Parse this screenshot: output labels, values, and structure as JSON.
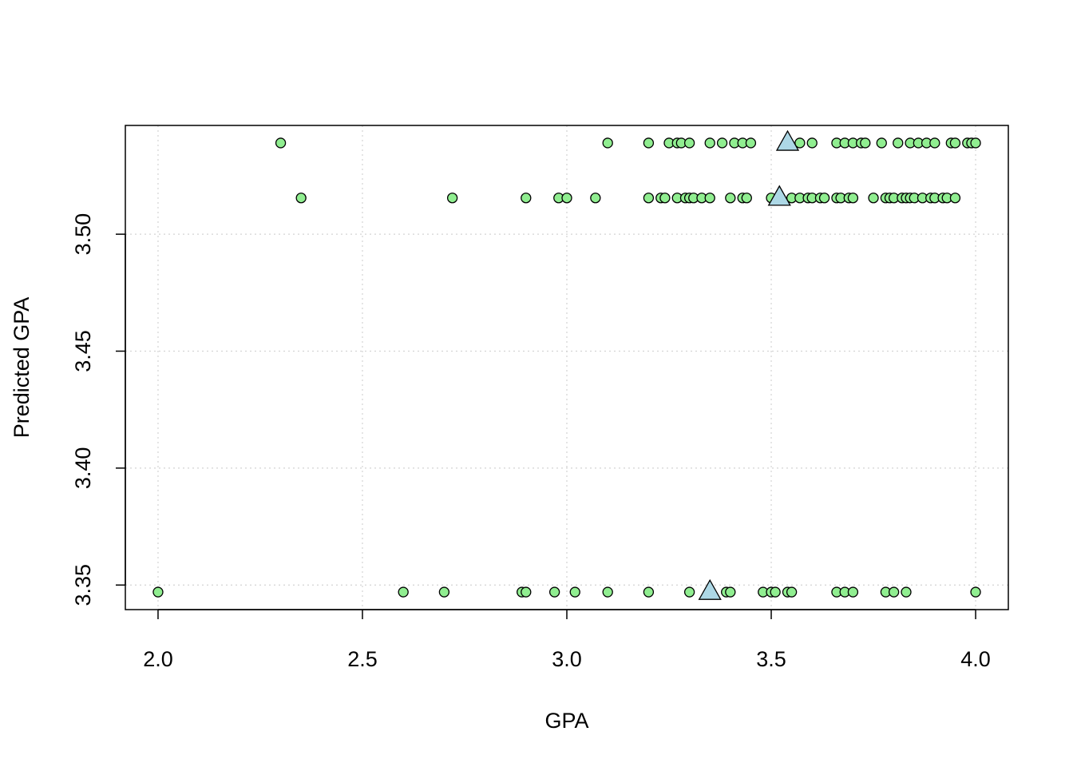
{
  "chart_data": {
    "type": "scatter",
    "title": "",
    "xlabel": "GPA",
    "ylabel": "Predicted GPA",
    "xlim": [
      1.92,
      4.08
    ],
    "ylim": [
      3.3395,
      3.5465
    ],
    "x_ticks": [
      2.0,
      2.5,
      3.0,
      3.5,
      4.0
    ],
    "x_tick_labels": [
      "2.0",
      "2.5",
      "3.0",
      "3.5",
      "4.0"
    ],
    "y_ticks": [
      3.35,
      3.4,
      3.45,
      3.5
    ],
    "y_tick_labels": [
      "3.35",
      "3.40",
      "3.45",
      "3.50"
    ],
    "grid": true,
    "colors": {
      "points_fill": "#90ee90",
      "triangles_fill": "#add8e6",
      "marker_edge": "#000000",
      "grid": "#d3d3d3"
    },
    "series": [
      {
        "marker": "circle",
        "points": [
          [
            2.3,
            3.539
          ],
          [
            3.1,
            3.539
          ],
          [
            3.2,
            3.539
          ],
          [
            3.25,
            3.539
          ],
          [
            3.27,
            3.539
          ],
          [
            3.28,
            3.539
          ],
          [
            3.3,
            3.539
          ],
          [
            3.35,
            3.539
          ],
          [
            3.38,
            3.539
          ],
          [
            3.41,
            3.539
          ],
          [
            3.43,
            3.539
          ],
          [
            3.45,
            3.539
          ],
          [
            3.57,
            3.539
          ],
          [
            3.6,
            3.539
          ],
          [
            3.66,
            3.539
          ],
          [
            3.68,
            3.539
          ],
          [
            3.7,
            3.539
          ],
          [
            3.72,
            3.539
          ],
          [
            3.73,
            3.539
          ],
          [
            3.77,
            3.539
          ],
          [
            3.81,
            3.539
          ],
          [
            3.84,
            3.539
          ],
          [
            3.86,
            3.539
          ],
          [
            3.88,
            3.539
          ],
          [
            3.9,
            3.539
          ],
          [
            3.94,
            3.539
          ],
          [
            3.95,
            3.539
          ],
          [
            3.98,
            3.539
          ],
          [
            3.99,
            3.539
          ],
          [
            4.0,
            3.539
          ],
          [
            2.35,
            3.5155
          ],
          [
            2.72,
            3.5155
          ],
          [
            2.9,
            3.5155
          ],
          [
            2.98,
            3.5155
          ],
          [
            3.0,
            3.5155
          ],
          [
            3.07,
            3.5155
          ],
          [
            3.2,
            3.5155
          ],
          [
            3.23,
            3.5155
          ],
          [
            3.24,
            3.5155
          ],
          [
            3.27,
            3.5155
          ],
          [
            3.29,
            3.5155
          ],
          [
            3.3,
            3.5155
          ],
          [
            3.31,
            3.5155
          ],
          [
            3.33,
            3.5155
          ],
          [
            3.35,
            3.5155
          ],
          [
            3.4,
            3.5155
          ],
          [
            3.43,
            3.5155
          ],
          [
            3.44,
            3.5155
          ],
          [
            3.5,
            3.5155
          ],
          [
            3.52,
            3.5155
          ],
          [
            3.55,
            3.5155
          ],
          [
            3.57,
            3.5155
          ],
          [
            3.59,
            3.5155
          ],
          [
            3.6,
            3.5155
          ],
          [
            3.62,
            3.5155
          ],
          [
            3.63,
            3.5155
          ],
          [
            3.66,
            3.5155
          ],
          [
            3.67,
            3.5155
          ],
          [
            3.69,
            3.5155
          ],
          [
            3.7,
            3.5155
          ],
          [
            3.75,
            3.5155
          ],
          [
            3.78,
            3.5155
          ],
          [
            3.79,
            3.5155
          ],
          [
            3.8,
            3.5155
          ],
          [
            3.82,
            3.5155
          ],
          [
            3.83,
            3.5155
          ],
          [
            3.84,
            3.5155
          ],
          [
            3.85,
            3.5155
          ],
          [
            3.87,
            3.5155
          ],
          [
            3.89,
            3.5155
          ],
          [
            3.9,
            3.5155
          ],
          [
            3.92,
            3.5155
          ],
          [
            3.93,
            3.5155
          ],
          [
            3.95,
            3.5155
          ],
          [
            2.0,
            3.347
          ],
          [
            2.6,
            3.347
          ],
          [
            2.7,
            3.347
          ],
          [
            2.89,
            3.347
          ],
          [
            2.9,
            3.347
          ],
          [
            2.97,
            3.347
          ],
          [
            3.02,
            3.347
          ],
          [
            3.1,
            3.347
          ],
          [
            3.2,
            3.347
          ],
          [
            3.3,
            3.347
          ],
          [
            3.39,
            3.347
          ],
          [
            3.4,
            3.347
          ],
          [
            3.48,
            3.347
          ],
          [
            3.5,
            3.347
          ],
          [
            3.51,
            3.347
          ],
          [
            3.54,
            3.347
          ],
          [
            3.55,
            3.347
          ],
          [
            3.66,
            3.347
          ],
          [
            3.68,
            3.347
          ],
          [
            3.7,
            3.347
          ],
          [
            3.78,
            3.347
          ],
          [
            3.8,
            3.347
          ],
          [
            3.83,
            3.347
          ],
          [
            4.0,
            3.347
          ]
        ]
      },
      {
        "marker": "triangle",
        "points": [
          [
            3.54,
            3.539
          ],
          [
            3.52,
            3.5155
          ],
          [
            3.35,
            3.347
          ]
        ]
      }
    ]
  }
}
